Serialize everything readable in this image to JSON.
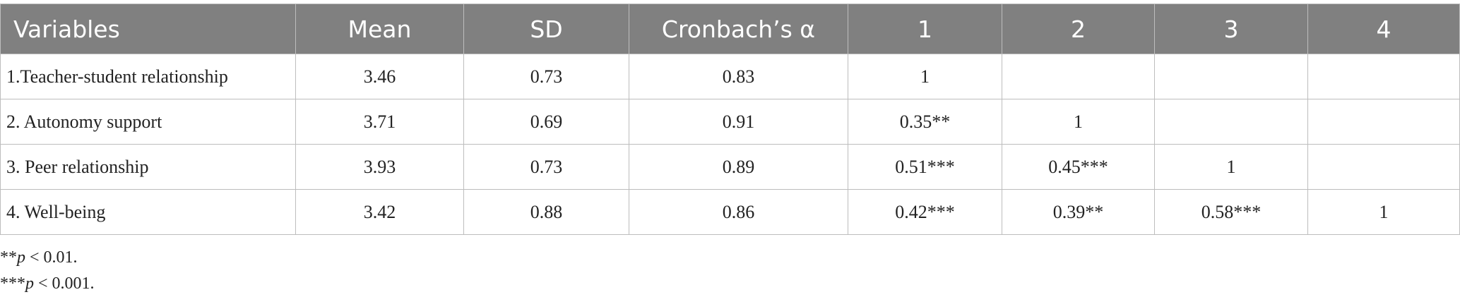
{
  "table": {
    "header": [
      "Variables",
      "Mean",
      "SD",
      "Cronbach’s α",
      "1",
      "2",
      "3",
      "4"
    ],
    "rows": [
      [
        "1.Teacher-student relationship",
        "3.46",
        "0.73",
        "0.83",
        "1"
      ],
      [
        "2. Autonomy support",
        "3.71",
        "0.69",
        "0.91",
        "0.35**",
        "1"
      ],
      [
        "3. Peer relationship",
        "3.93",
        "0.73",
        "0.89",
        "0.51***",
        "0.45***",
        "1"
      ],
      [
        "4. Well-being",
        "3.42",
        "0.88",
        "0.86",
        "0.42***",
        "0.39**",
        "0.58***",
        "1"
      ]
    ]
  },
  "footnotes": [
    {
      "marker": "**",
      "symbol": "p",
      "text": " < 0.01."
    },
    {
      "marker": "***",
      "symbol": "p",
      "text": " < 0.001."
    }
  ]
}
